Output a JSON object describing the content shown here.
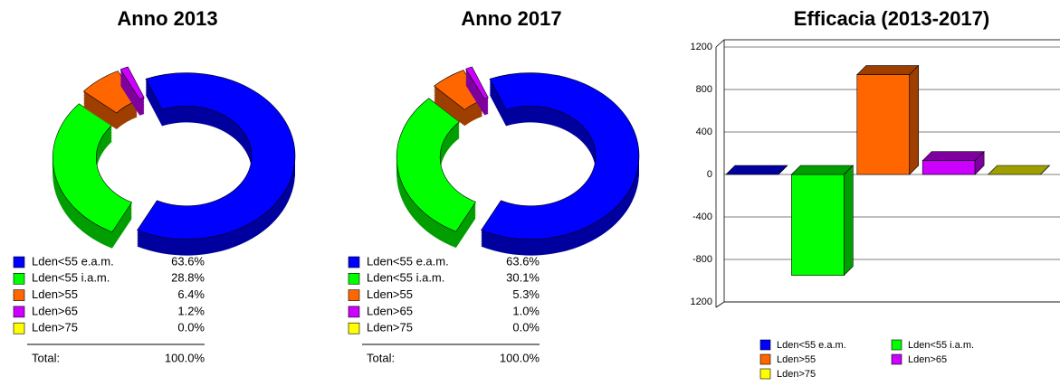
{
  "chart_data": [
    {
      "type": "pie",
      "title": "Anno 2013",
      "categories": [
        "Lden<55 e.a.m.",
        "Lden<55 i.a.m.",
        "Lden>55",
        "Lden>65",
        "Lden>75"
      ],
      "values": [
        63.6,
        28.8,
        6.4,
        1.2,
        0
      ],
      "value_labels": [
        "63.6%",
        "28.8%",
        "6.4%",
        "1.2%",
        "0.0%"
      ],
      "colors": [
        "#0000ff",
        "#00ff00",
        "#ff6600",
        "#cc00ff",
        "#ffff00"
      ],
      "total": {
        "label": "Total:",
        "value": 100,
        "value_label": "100.0%"
      }
    },
    {
      "type": "pie",
      "title": "Anno 2017",
      "categories": [
        "Lden<55 e.a.m.",
        "Lden<55 i.a.m.",
        "Lden>55",
        "Lden>65",
        "Lden>75"
      ],
      "values": [
        63.6,
        30.1,
        5.3,
        1.0,
        0
      ],
      "value_labels": [
        "63.6%",
        "30.1%",
        "5.3%",
        "1.0%",
        "0.0%"
      ],
      "colors": [
        "#0000ff",
        "#00ff00",
        "#ff6600",
        "#cc00ff",
        "#ffff00"
      ],
      "total": {
        "label": "Total:",
        "value": 100,
        "value_label": "100.0%"
      }
    },
    {
      "type": "bar",
      "title": "Efficacia (2013-2017)",
      "categories": [
        "Lden<55 e.a.m.",
        "Lden<55 i.a.m.",
        "Lden>55",
        "Lden>65",
        "Lden>75"
      ],
      "values": [
        0,
        -950,
        940,
        130,
        0
      ],
      "colors": [
        "#0000ff",
        "#00ff00",
        "#ff6600",
        "#cc00ff",
        "#ffff00"
      ],
      "ylim": [
        -1200,
        1200
      ],
      "yticks": [
        1200,
        800,
        400,
        0,
        -400,
        -800,
        -1200
      ],
      "grid": true
    }
  ]
}
